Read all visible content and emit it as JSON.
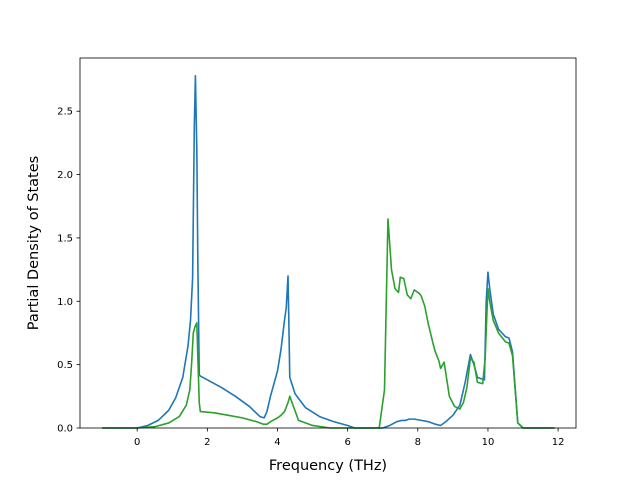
{
  "chart_data": {
    "type": "line",
    "title": "",
    "xlabel": "Frequency (THz)",
    "ylabel": "Partial Density of States",
    "xlim": [
      -1.63,
      12.51
    ],
    "ylim": [
      0.0,
      2.92
    ],
    "xticks": [
      0,
      2,
      4,
      6,
      8,
      10,
      12
    ],
    "xtick_labels": [
      "0",
      "2",
      "4",
      "6",
      "8",
      "10",
      "12"
    ],
    "yticks": [
      0.0,
      0.5,
      1.0,
      1.5,
      2.0,
      2.5
    ],
    "ytick_labels": [
      "0.0",
      "0.5",
      "1.0",
      "1.5",
      "2.0",
      "2.5"
    ],
    "grid": false,
    "legend": "none",
    "series": [
      {
        "color": "#1f77b4",
        "x": [
          -1.0,
          0.0,
          0.3,
          0.6,
          0.9,
          1.1,
          1.3,
          1.45,
          1.52,
          1.58,
          1.63,
          1.66,
          1.7,
          1.73,
          1.77,
          1.8,
          2.0,
          2.4,
          2.8,
          3.2,
          3.5,
          3.62,
          3.7,
          3.8,
          4.0,
          4.1,
          4.2,
          4.25,
          4.3,
          4.32,
          4.35,
          4.5,
          4.8,
          5.2,
          5.6,
          6.0,
          6.2,
          7.0,
          7.2,
          7.4,
          7.55,
          7.65,
          7.75,
          7.9,
          8.1,
          8.3,
          8.5,
          8.65,
          8.8,
          9.0,
          9.2,
          9.35,
          9.5,
          9.6,
          9.7,
          9.9,
          9.95,
          10.0,
          10.05,
          10.15,
          10.3,
          10.5,
          10.6,
          10.7,
          10.85,
          11.0,
          11.9
        ],
        "values": [
          0.0,
          0.0,
          0.02,
          0.06,
          0.14,
          0.24,
          0.4,
          0.65,
          0.85,
          1.18,
          2.4,
          2.78,
          2.2,
          1.3,
          0.42,
          0.41,
          0.38,
          0.32,
          0.25,
          0.17,
          0.09,
          0.08,
          0.13,
          0.25,
          0.45,
          0.62,
          0.85,
          0.95,
          1.2,
          0.9,
          0.4,
          0.27,
          0.16,
          0.09,
          0.05,
          0.02,
          0.0,
          0.0,
          0.02,
          0.05,
          0.06,
          0.06,
          0.07,
          0.07,
          0.06,
          0.05,
          0.03,
          0.02,
          0.05,
          0.1,
          0.18,
          0.36,
          0.58,
          0.5,
          0.4,
          0.38,
          1.0,
          1.23,
          1.1,
          0.9,
          0.78,
          0.72,
          0.71,
          0.6,
          0.04,
          0.0,
          0.0
        ]
      },
      {
        "color": "#2ca02c",
        "x": [
          -1.0,
          0.0,
          0.5,
          0.9,
          1.2,
          1.4,
          1.5,
          1.55,
          1.6,
          1.65,
          1.7,
          1.73,
          1.77,
          1.8,
          2.2,
          2.6,
          3.0,
          3.4,
          3.6,
          3.7,
          3.8,
          4.0,
          4.1,
          4.2,
          4.3,
          4.35,
          4.6,
          5.0,
          5.5,
          6.0,
          6.9,
          7.05,
          7.15,
          7.25,
          7.35,
          7.45,
          7.5,
          7.6,
          7.7,
          7.8,
          7.9,
          8.0,
          8.05,
          8.1,
          8.2,
          8.3,
          8.45,
          8.5,
          8.6,
          8.65,
          8.75,
          8.9,
          9.05,
          9.2,
          9.3,
          9.4,
          9.5,
          9.6,
          9.7,
          9.85,
          9.92,
          9.97,
          10.0,
          10.05,
          10.15,
          10.3,
          10.5,
          10.6,
          10.7,
          10.85,
          11.0,
          11.9
        ],
        "values": [
          0.0,
          0.0,
          0.01,
          0.04,
          0.09,
          0.18,
          0.3,
          0.5,
          0.75,
          0.8,
          0.83,
          0.55,
          0.2,
          0.13,
          0.12,
          0.1,
          0.08,
          0.05,
          0.03,
          0.03,
          0.05,
          0.08,
          0.1,
          0.13,
          0.2,
          0.25,
          0.06,
          0.02,
          0.0,
          0.0,
          0.0,
          0.3,
          1.65,
          1.25,
          1.1,
          1.07,
          1.19,
          1.18,
          1.05,
          1.02,
          1.09,
          1.07,
          1.06,
          1.04,
          0.96,
          0.82,
          0.65,
          0.6,
          0.53,
          0.47,
          0.52,
          0.25,
          0.17,
          0.15,
          0.2,
          0.32,
          0.55,
          0.52,
          0.36,
          0.35,
          0.55,
          0.9,
          1.1,
          1.0,
          0.85,
          0.75,
          0.68,
          0.67,
          0.57,
          0.04,
          0.0,
          0.0
        ]
      }
    ]
  }
}
